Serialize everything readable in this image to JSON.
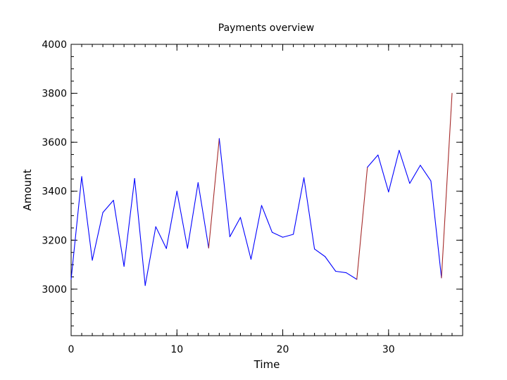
{
  "chart_data": {
    "type": "line",
    "title": "Payments overview",
    "xlabel": "Time",
    "ylabel": "Amount",
    "xlim": [
      0,
      37
    ],
    "ylim": [
      2810,
      4000
    ],
    "x_ticks": [
      0,
      10,
      20,
      30
    ],
    "x_tick_labels": [
      "0",
      "10",
      "20",
      "30"
    ],
    "x_minor_step": 1,
    "y_ticks": [
      3000,
      3200,
      3400,
      3600,
      3800,
      4000
    ],
    "y_tick_labels": [
      "3000",
      "3200",
      "3400",
      "3600",
      "3800",
      "4000"
    ],
    "y_minor_step": 50,
    "grid": false,
    "legend": "none",
    "colors": {
      "normal": "#0000ff",
      "highlight": "#a52a2a"
    },
    "x": [
      0,
      1,
      2,
      3,
      4,
      5,
      6,
      7,
      8,
      9,
      10,
      11,
      12,
      13,
      14,
      15,
      16,
      17,
      18,
      19,
      20,
      21,
      22,
      23,
      24,
      25,
      26,
      27,
      28,
      29,
      30,
      31,
      32,
      33,
      34,
      35,
      36
    ],
    "y": [
      3040,
      3460,
      3118,
      3313,
      3363,
      3093,
      3452,
      3015,
      3255,
      3166,
      3400,
      3167,
      3435,
      3168,
      3615,
      3214,
      3293,
      3122,
      3342,
      3232,
      3212,
      3224,
      3455,
      3164,
      3133,
      3073,
      3067,
      3040,
      3498,
      3548,
      3397,
      3567,
      3432,
      3506,
      3442,
      3046,
      3800
    ],
    "highlight_segments": [
      13,
      27,
      35
    ]
  }
}
